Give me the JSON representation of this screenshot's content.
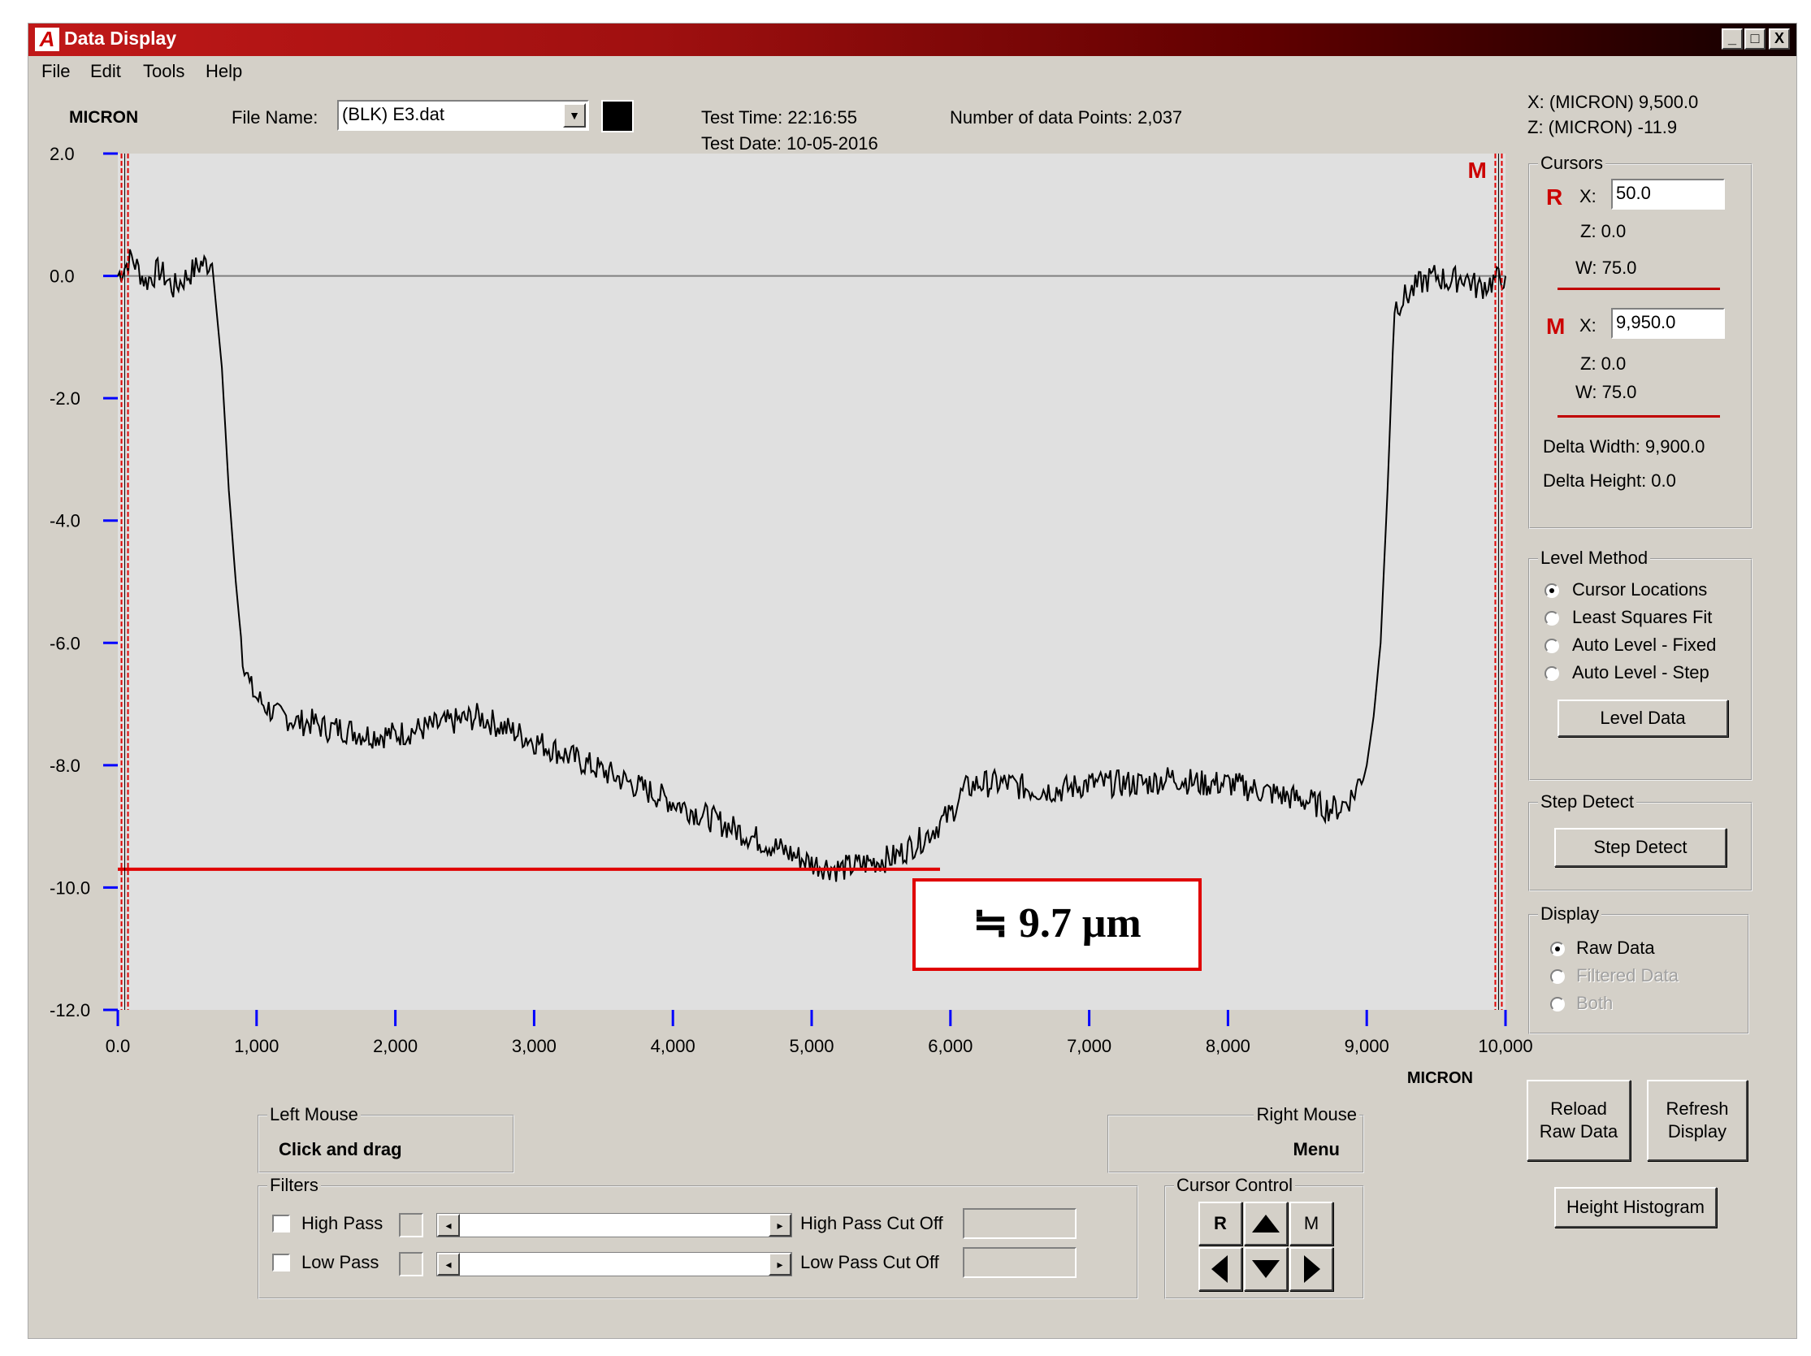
{
  "window": {
    "title": "Data Display",
    "logo": "A",
    "controls": [
      "_",
      "□",
      "X"
    ]
  },
  "menu": [
    "File",
    "Edit",
    "Tools",
    "Help"
  ],
  "header": {
    "units": "MICRON",
    "file_name_label": "File Name:",
    "file_name_value": "(BLK) E3.dat",
    "test_time": "Test Time: 22:16:55",
    "test_date": "Test Date: 10-05-2016",
    "data_points": "Number of data Points: 2,037"
  },
  "readout": {
    "x": "X: (MICRON)  9,500.0",
    "z": "Z: (MICRON)  -11.9"
  },
  "cursors": {
    "title": "Cursors",
    "r_label": "R",
    "r_x_label": "X:",
    "r_x_value": "50.0",
    "r_z": "Z:  0.0",
    "r_w": "W:  75.0",
    "m_label": "M",
    "m_x_label": "X:",
    "m_x_value": "9,950.0",
    "m_z": "Z:  0.0",
    "m_w": "W:  75.0",
    "delta_width": "Delta Width:  9,900.0",
    "delta_height": "Delta Height: 0.0"
  },
  "level_method": {
    "title": "Level Method",
    "options": [
      "Cursor Locations",
      "Least Squares Fit",
      "Auto Level - Fixed",
      "Auto Level - Step"
    ],
    "selected": 0,
    "button": "Level Data"
  },
  "step_detect": {
    "title": "Step Detect",
    "button": "Step Detect"
  },
  "display": {
    "title": "Display",
    "options": [
      "Raw Data",
      "Filtered Data",
      "Both"
    ],
    "selected": 0
  },
  "buttons": {
    "reload_line1": "Reload",
    "reload_line2": "Raw Data",
    "refresh_line1": "Refresh",
    "refresh_line2": "Display",
    "histogram": "Height Histogram"
  },
  "left_mouse": {
    "title": "Left Mouse",
    "value": "Click and drag"
  },
  "right_mouse": {
    "title": "Right Mouse",
    "value": "Menu"
  },
  "filters": {
    "title": "Filters",
    "high_pass": "High Pass",
    "low_pass": "Low Pass",
    "high_cutoff": "High Pass Cut Off",
    "low_cutoff": "Low Pass Cut Off"
  },
  "cursor_control": {
    "title": "Cursor Control",
    "r": "R",
    "m": "M"
  },
  "annotation": "≒ 9.7 μm",
  "chart_data": {
    "type": "line",
    "xlabel": "MICRON",
    "xlim": [
      0,
      10000
    ],
    "ylim": [
      -12,
      2
    ],
    "x_ticks": [
      "0.0",
      "1,000",
      "2,000",
      "3,000",
      "4,000",
      "5,000",
      "6,000",
      "7,000",
      "8,000",
      "9,000",
      "10,000"
    ],
    "y_ticks": [
      "2.0",
      "0.0",
      "-2.0",
      "-4.0",
      "-6.0",
      "-8.0",
      "-10.0",
      "-12.0"
    ],
    "cursor_r_x": 50,
    "cursor_m_x": 9950,
    "cursor_m_label": "M",
    "reference_line_y": -9.7,
    "x": [
      0,
      100,
      200,
      300,
      400,
      500,
      600,
      680,
      750,
      800,
      850,
      900,
      950,
      1000,
      1050,
      1100,
      1150,
      1200,
      1300,
      1400,
      1500,
      1600,
      1800,
      2000,
      2200,
      2400,
      2600,
      2700,
      2800,
      3000,
      3200,
      3400,
      3600,
      3800,
      4000,
      4200,
      4400,
      4600,
      4800,
      5000,
      5200,
      5400,
      5600,
      5800,
      5900,
      6000,
      6100,
      6200,
      6400,
      6600,
      6800,
      7000,
      7200,
      7400,
      7600,
      7800,
      8000,
      8200,
      8400,
      8600,
      8700,
      8800,
      8900,
      9000,
      9050,
      9100,
      9150,
      9200,
      9300,
      9400,
      9500,
      9600,
      9700,
      9800,
      9900,
      10000
    ],
    "y": [
      0,
      0.3,
      -0.1,
      0.1,
      -0.2,
      0.0,
      0.2,
      0.2,
      -1.5,
      -3.5,
      -5.0,
      -6.2,
      -6.7,
      -6.9,
      -7.0,
      -7.1,
      -7.2,
      -7.2,
      -7.3,
      -7.3,
      -7.4,
      -7.4,
      -7.5,
      -7.5,
      -7.4,
      -7.3,
      -7.2,
      -7.3,
      -7.4,
      -7.6,
      -7.8,
      -8.0,
      -8.2,
      -8.4,
      -8.6,
      -8.8,
      -9.0,
      -9.2,
      -9.4,
      -9.6,
      -9.7,
      -9.6,
      -9.5,
      -9.2,
      -9.0,
      -8.8,
      -8.4,
      -8.3,
      -8.3,
      -8.4,
      -8.4,
      -8.3,
      -8.3,
      -8.3,
      -8.2,
      -8.3,
      -8.3,
      -8.4,
      -8.5,
      -8.6,
      -8.7,
      -8.7,
      -8.5,
      -8.0,
      -7.2,
      -6.0,
      -3.5,
      -0.5,
      -0.3,
      -0.1,
      0.0,
      -0.1,
      0.0,
      -0.2,
      -0.1,
      0.0
    ]
  }
}
